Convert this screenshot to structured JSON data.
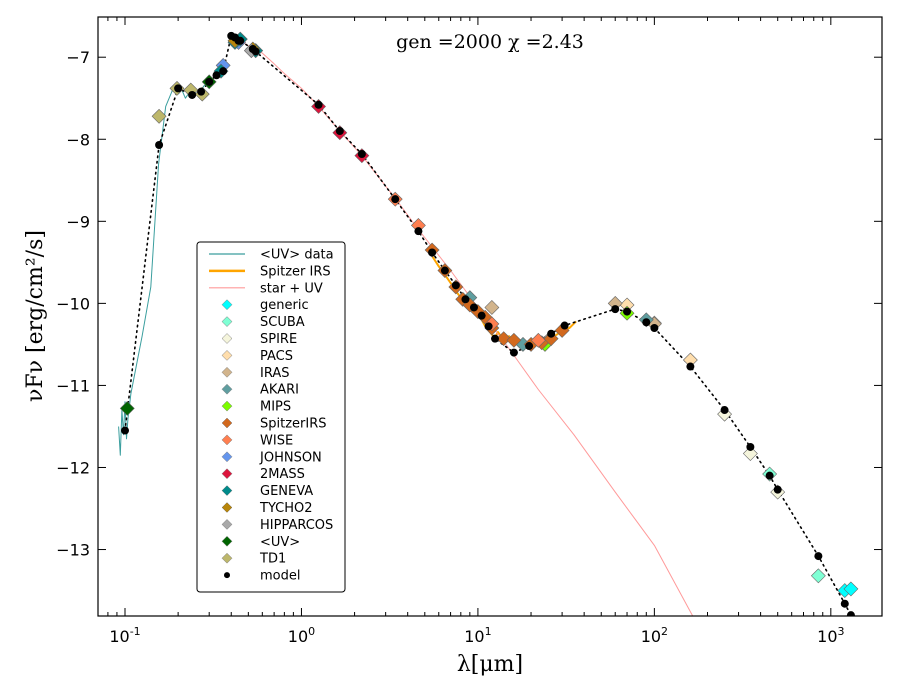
{
  "chart_data": {
    "type": "scatter",
    "title": "",
    "annotation": "gen =2000  χ =2.43",
    "annotation_position": "top-center",
    "xlabel": "λ[μm]",
    "ylabel": "νFν [erg/cm²/s]",
    "xscale": "log",
    "xlim": [
      0.0703,
      1950
    ],
    "ylim": [
      -13.81,
      -6.51
    ],
    "grid": false,
    "x_ticks": [
      {
        "value": 0.1,
        "base": "10",
        "exp": "-1"
      },
      {
        "value": 1,
        "base": "10",
        "exp": "0"
      },
      {
        "value": 10,
        "base": "10",
        "exp": "1"
      },
      {
        "value": 100,
        "base": "10",
        "exp": "2"
      },
      {
        "value": 1000,
        "base": "10",
        "exp": "3"
      }
    ],
    "y_ticks": [
      {
        "value": -7,
        "label": "−7"
      },
      {
        "value": -8,
        "label": "−8"
      },
      {
        "value": -9,
        "label": "−9"
      },
      {
        "value": -10,
        "label": "−10"
      },
      {
        "value": -11,
        "label": "−11"
      },
      {
        "value": -12,
        "label": "−12"
      },
      {
        "value": -13,
        "label": "−13"
      }
    ],
    "legend_position": "center-left",
    "lines": [
      {
        "name": "<UV> data",
        "color": "#3a9e9e",
        "width": 1,
        "x": [
          0.092,
          0.094,
          0.096,
          0.098,
          0.1,
          0.102,
          0.104,
          0.108,
          0.115,
          0.125,
          0.14,
          0.155,
          0.17,
          0.19,
          0.2,
          0.21,
          0.22,
          0.24,
          0.26,
          0.28,
          0.3,
          0.32
        ],
        "y": [
          -11.5,
          -11.85,
          -11.3,
          -11.6,
          -11.2,
          -11.65,
          -11.4,
          -11.1,
          -10.8,
          -10.4,
          -9.8,
          -8.3,
          -7.6,
          -7.35,
          -7.45,
          -7.4,
          -7.5,
          -7.38,
          -7.48,
          -7.35,
          -7.3,
          -7.25
        ]
      },
      {
        "name": "Spitzer IRS",
        "color": "#ffa500",
        "width": 2,
        "x": [
          5.2,
          5.6,
          6.0,
          6.5,
          7.0,
          7.5,
          8.0,
          8.5,
          9.0,
          9.5,
          10.0,
          10.5,
          11.0,
          11.5,
          12.0,
          12.5,
          13.0,
          14.0,
          15.0,
          16.0,
          17.0,
          18.0,
          19.0,
          20.0,
          22.0,
          24.0,
          26.0,
          28.0,
          30.0,
          33.0,
          36.0
        ],
        "y": [
          -9.33,
          -9.45,
          -9.55,
          -9.65,
          -9.75,
          -9.85,
          -9.93,
          -10.0,
          -10.05,
          -10.1,
          -10.15,
          -10.2,
          -10.28,
          -10.33,
          -10.38,
          -10.42,
          -10.35,
          -10.45,
          -10.4,
          -10.45,
          -10.5,
          -10.48,
          -10.52,
          -10.48,
          -10.42,
          -10.45,
          -10.42,
          -10.38,
          -10.33,
          -10.3,
          -10.22
        ]
      },
      {
        "name": "star + UV",
        "color": "#ff9a9a",
        "width": 1,
        "x": [
          0.4,
          0.45,
          0.5,
          0.55,
          0.6,
          0.7,
          0.8,
          1.0,
          1.25,
          1.65,
          2.2,
          3.4,
          4.6,
          7.0,
          10.0,
          15.0,
          22.0,
          35.0,
          60.0,
          100.0,
          165.0
        ],
        "y": [
          -6.82,
          -6.8,
          -6.86,
          -6.9,
          -6.95,
          -7.08,
          -7.2,
          -7.38,
          -7.6,
          -7.9,
          -8.2,
          -8.72,
          -9.1,
          -9.6,
          -10.05,
          -10.55,
          -11.05,
          -11.6,
          -12.3,
          -12.95,
          -13.81
        ]
      }
    ],
    "model_line": {
      "name": "model (dotted)",
      "color": "#000000"
    },
    "series": [
      {
        "name": "generic",
        "color": "#00ffff",
        "x": [
          0.45,
          1200,
          1300
        ],
        "y": [
          -6.78,
          -13.5,
          -13.48
        ]
      },
      {
        "name": "SCUBA",
        "color": "#7fffd4",
        "x": [
          450,
          850
        ],
        "y": [
          -12.08,
          -13.32
        ]
      },
      {
        "name": "SPIRE",
        "color": "#f5f5dc",
        "x": [
          250,
          350,
          500
        ],
        "y": [
          -11.35,
          -11.83,
          -12.3
        ]
      },
      {
        "name": "PACS",
        "color": "#ffdead",
        "x": [
          70,
          100,
          160
        ],
        "y": [
          -10.02,
          -10.24,
          -10.69
        ]
      },
      {
        "name": "IRAS",
        "color": "#d2b48c",
        "x": [
          12,
          25,
          60,
          100
        ],
        "y": [
          -10.05,
          -10.45,
          -10.0,
          -10.25
        ]
      },
      {
        "name": "AKARI",
        "color": "#5f9ea0",
        "x": [
          9,
          18,
          90
        ],
        "y": [
          -9.93,
          -10.5,
          -10.2
        ]
      },
      {
        "name": "MIPS",
        "color": "#7cfc00",
        "x": [
          24,
          70
        ],
        "y": [
          -10.5,
          -10.12
        ]
      },
      {
        "name": "SpitzerIRS",
        "color": "#d2691e",
        "x": [
          5.5,
          6.5,
          7.5,
          8.2,
          9.0,
          10.0,
          11.0,
          12.0,
          14.0,
          16.0,
          20.0,
          23.0,
          26.0,
          30.0
        ],
        "y": [
          -9.35,
          -9.6,
          -9.8,
          -9.95,
          -10.02,
          -10.1,
          -10.17,
          -10.3,
          -10.43,
          -10.45,
          -10.5,
          -10.48,
          -10.43,
          -10.33
        ]
      },
      {
        "name": "WISE",
        "color": "#ff7f50",
        "x": [
          3.4,
          4.6,
          12,
          22
        ],
        "y": [
          -8.73,
          -9.05,
          -10.25,
          -10.45
        ]
      },
      {
        "name": "JOHNSON",
        "color": "#6495ed",
        "x": [
          0.36,
          0.44,
          0.55
        ],
        "y": [
          -7.1,
          -6.82,
          -6.92
        ]
      },
      {
        "name": "2MASS",
        "color": "#dc143c",
        "x": [
          1.25,
          1.65,
          2.2
        ],
        "y": [
          -7.6,
          -7.92,
          -8.2
        ]
      },
      {
        "name": "GENEVA",
        "color": "#008b8b",
        "x": [
          0.35,
          0.42,
          0.45,
          0.55
        ],
        "y": [
          -7.17,
          -6.82,
          -6.78,
          -6.92
        ]
      },
      {
        "name": "TYCHO2",
        "color": "#b8860b",
        "x": [
          0.42,
          0.53
        ],
        "y": [
          -6.8,
          -6.9
        ]
      },
      {
        "name": "HIPPARCOS",
        "color": "#a9a9a9",
        "x": [
          0.52
        ],
        "y": [
          -6.92
        ]
      },
      {
        "name": "<UV>",
        "color": "#006400",
        "x": [
          0.103,
          0.3
        ],
        "y": [
          -11.28,
          -7.3
        ]
      },
      {
        "name": "TD1",
        "color": "#bdb76b",
        "x": [
          0.156,
          0.197,
          0.236,
          0.274
        ],
        "y": [
          -7.72,
          -7.38,
          -7.4,
          -7.45
        ]
      }
    ],
    "model": {
      "name": "model",
      "color": "#000000",
      "x": [
        0.1,
        0.156,
        0.2,
        0.24,
        0.27,
        0.3,
        0.33,
        0.36,
        0.4,
        0.42,
        0.44,
        0.45,
        0.53,
        0.55,
        1.25,
        1.65,
        2.2,
        3.4,
        4.6,
        5.5,
        6.5,
        7.5,
        8.5,
        9.5,
        10.5,
        11.5,
        12.5,
        16.0,
        19.5,
        26.0,
        31.0,
        60.0,
        70.0,
        90.0,
        100.0,
        160.0,
        250.0,
        350.0,
        450.0,
        500.0,
        850.0,
        1200.0,
        1300.0
      ],
      "y": [
        -11.55,
        -8.07,
        -7.38,
        -7.46,
        -7.42,
        -7.3,
        -7.22,
        -7.17,
        -6.74,
        -6.76,
        -6.8,
        -6.8,
        -6.9,
        -6.93,
        -7.58,
        -7.9,
        -8.18,
        -8.73,
        -9.12,
        -9.38,
        -9.6,
        -9.78,
        -9.95,
        -10.05,
        -10.15,
        -10.28,
        -10.43,
        -10.6,
        -10.52,
        -10.37,
        -10.27,
        -10.07,
        -10.1,
        -10.23,
        -10.3,
        -10.77,
        -11.3,
        -11.75,
        -12.1,
        -12.27,
        -13.08,
        -13.66,
        -13.8
      ]
    }
  }
}
